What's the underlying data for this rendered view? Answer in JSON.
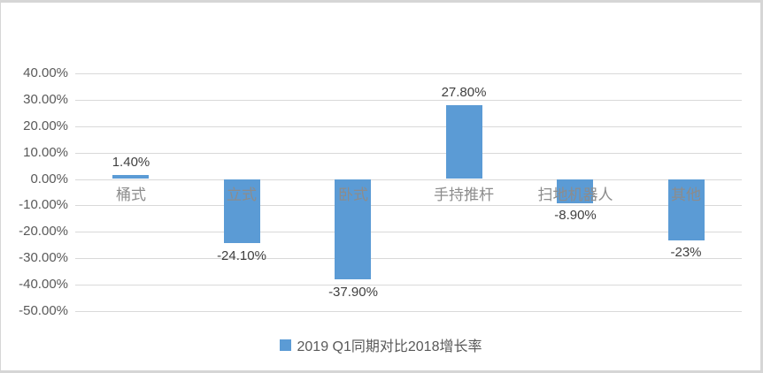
{
  "chart_data": {
    "type": "bar",
    "title": "",
    "categories": [
      "桶式",
      "立式",
      "卧式",
      "手持推杆",
      "扫地机器人",
      "其他"
    ],
    "series": [
      {
        "name": "2019 Q1同期对比2018增长率",
        "values": [
          1.4,
          -24.1,
          -37.9,
          27.8,
          -8.9,
          -23
        ]
      }
    ],
    "data_labels": [
      "1.40%",
      "-24.10%",
      "-37.90%",
      "27.80%",
      "-8.90%",
      "-23%"
    ],
    "xlabel": "",
    "ylabel": "",
    "ylim": [
      -50,
      40
    ],
    "y_tick_step": 10,
    "y_ticks": [
      "40.00%",
      "30.00%",
      "20.00%",
      "10.00%",
      "0.00%",
      "-10.00%",
      "-20.00%",
      "-30.00%",
      "-40.00%",
      "-50.00%"
    ],
    "grid": true,
    "legend_position": "bottom",
    "bar_color": "#5B9BD5"
  },
  "legend": {
    "label": "2019 Q1同期对比2018增长率",
    "marker_color": "#5B9BD5"
  },
  "colors": {
    "bar": "#5B9BD5",
    "gridline": "#d9d9d9",
    "axis_text": "#595959",
    "data_label_text": "#3f3f3f",
    "category_text": "#8c8c8c",
    "frame_border": "#d6d6d6",
    "background": "#ffffff"
  }
}
